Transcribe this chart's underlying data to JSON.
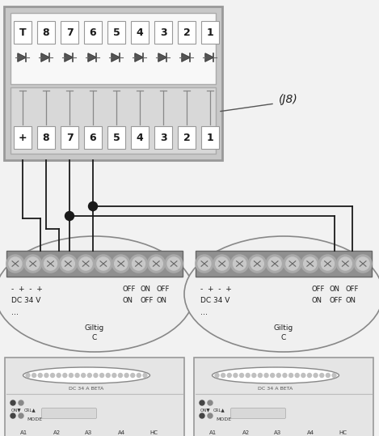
{
  "bg_color": "#f2f2f2",
  "white": "#ffffff",
  "black": "#000000",
  "wire_color": "#1a1a1a",
  "box_bg": "#cccccc",
  "box_border": "#888888",
  "term_bar_color": "#999999",
  "screw_color": "#bbbbbb",
  "screw_inner": "#d5d5d5",
  "device_bg": "#e8e8e8",
  "label_J8": "(J8)",
  "top_numbers": [
    "T",
    "8",
    "7",
    "6",
    "5",
    "4",
    "3",
    "2",
    "1"
  ],
  "bottom_numbers": [
    "+",
    "8",
    "7",
    "6",
    "5",
    "4",
    "3",
    "2",
    "1"
  ],
  "dimmer_top_labels": [
    "- + - +",
    "DC 34 V",
    "..."
  ],
  "dimmer_on_off": [
    "OFF",
    "ON",
    "OFF",
    "ON"
  ],
  "giltig": "Giltig\nC",
  "j8_label": "(J8)",
  "ch_labels": [
    "A1",
    "A2",
    "A3",
    "A4",
    "HC"
  ],
  "dc_label": "DC 34 A BETA"
}
